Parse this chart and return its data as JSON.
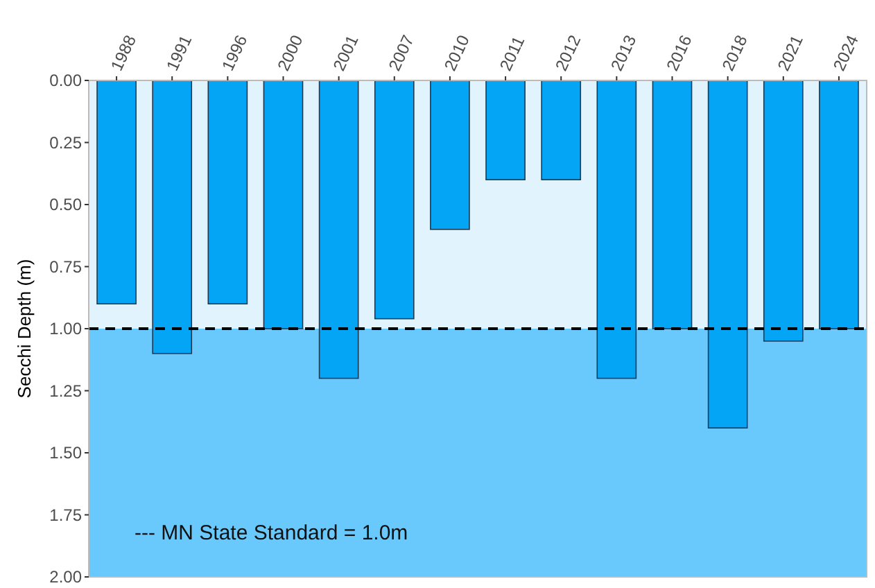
{
  "chart_data": {
    "type": "bar",
    "ylabel": "Secchi Depth (m)",
    "categories": [
      "1988",
      "1991",
      "1996",
      "2000",
      "2001",
      "2007",
      "2010",
      "2011",
      "2012",
      "2013",
      "2016",
      "2018",
      "2021",
      "2024"
    ],
    "values": [
      0.9,
      1.1,
      0.9,
      1.0,
      1.2,
      0.96,
      0.6,
      0.4,
      0.4,
      1.2,
      1.0,
      1.4,
      1.05,
      1.0
    ],
    "color": "#05a5f5",
    "ylim": [
      2,
      0
    ],
    "yticks": [
      {
        "value": 0,
        "label": "0.00"
      },
      {
        "value": 0.25,
        "label": "0.25"
      },
      {
        "value": 0.5,
        "label": "0.50"
      },
      {
        "value": 0.75,
        "label": "0.75"
      },
      {
        "value": 1,
        "label": "1.00"
      },
      {
        "value": 1.25,
        "label": "1.25"
      },
      {
        "value": 1.5,
        "label": "1.50"
      },
      {
        "value": 1.75,
        "label": "1.75"
      },
      {
        "value": 2,
        "label": "2.00"
      }
    ],
    "grid": false,
    "bands": [
      {
        "axis": "y",
        "from": 0,
        "to": 1,
        "color": "#e1f4fd"
      },
      {
        "axis": "y",
        "from": 1,
        "to": 2,
        "color": "#69c9fd"
      }
    ],
    "ref_lines": [
      {
        "axis": "y",
        "value": 1,
        "line_style": "dashed",
        "color": "#000000"
      }
    ],
    "annotations": [
      "--- MN State Standard = 1.0m"
    ]
  }
}
